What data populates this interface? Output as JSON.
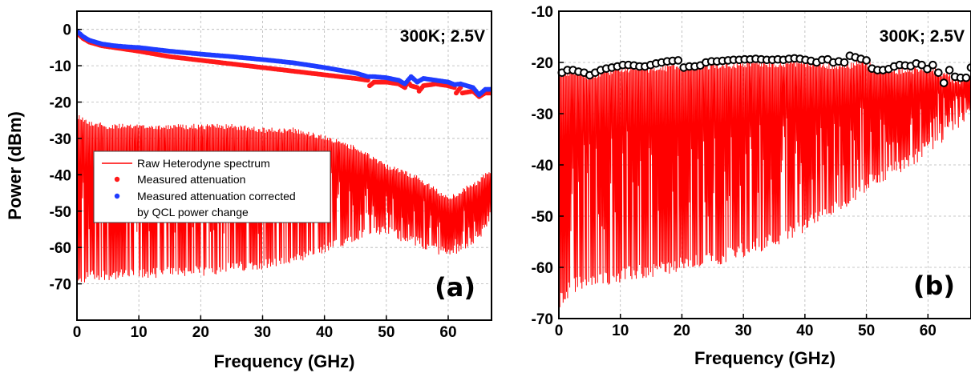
{
  "chart_data": [
    {
      "type": "line",
      "panel_label": "(a)",
      "condition_label": "300K; 2.5V",
      "xlabel": "Frequency  (GHz)",
      "ylabel": "Power (dBm)",
      "xlim": [
        0,
        67
      ],
      "ylim": [
        -80,
        5
      ],
      "x_ticks": [
        0,
        10,
        20,
        30,
        40,
        50,
        60
      ],
      "y_ticks": [
        0,
        -10,
        -20,
        -30,
        -40,
        -50,
        -60,
        -70
      ],
      "grid": true,
      "legend_position": "center-left",
      "colors": {
        "raw": "#ff0000",
        "attenuation": "#ff1a1a",
        "corrected": "#1f3cff"
      },
      "series": [
        {
          "name": "Raw Heterodyne spectrum",
          "kind": "comb-line",
          "envelope_x": [
            0,
            2,
            5,
            10,
            15,
            20,
            25,
            30,
            35,
            40,
            45,
            50,
            55,
            60,
            65,
            67
          ],
          "envelope_top": [
            -23,
            -25,
            -26,
            -26,
            -26,
            -26,
            -26,
            -27,
            -27,
            -29,
            -32,
            -37,
            -40,
            -46,
            -41,
            -38
          ],
          "envelope_bottom": [
            -71,
            -69,
            -69,
            -69,
            -68,
            -68,
            -67,
            -66,
            -65,
            -62,
            -58,
            -57,
            -60,
            -63,
            -58,
            -52
          ]
        },
        {
          "name": "Measured attenuation",
          "kind": "points",
          "x": [
            0,
            1,
            2,
            4,
            6,
            8,
            10,
            15,
            20,
            25,
            30,
            35,
            40,
            45,
            47,
            47.3,
            48,
            50,
            52,
            53,
            53.5,
            54,
            55,
            55.3,
            56,
            58,
            60,
            61,
            61.3,
            62,
            62.3,
            64,
            65,
            66,
            67
          ],
          "y": [
            -1,
            -2.5,
            -3.5,
            -4.5,
            -5,
            -5.5,
            -6,
            -7.5,
            -8.5,
            -9.5,
            -10.5,
            -11.5,
            -12.5,
            -13.5,
            -14,
            -15.5,
            -14.5,
            -14.5,
            -15,
            -16,
            -14.5,
            -15.5,
            -16,
            -17,
            -15.5,
            -15,
            -15.5,
            -16,
            -17.5,
            -16,
            -17.5,
            -17,
            -18.5,
            -17.5,
            -17.5
          ]
        },
        {
          "name": "Measured attenuation corrected by QCL power change",
          "kind": "points",
          "x": [
            0,
            1,
            2,
            4,
            6,
            8,
            10,
            15,
            20,
            25,
            30,
            35,
            40,
            45,
            47,
            48,
            50,
            52,
            53,
            54,
            55,
            56,
            58,
            60,
            61,
            62,
            64,
            65,
            66,
            67
          ],
          "y": [
            -0.5,
            -2,
            -3,
            -4,
            -4.5,
            -4.8,
            -5,
            -6,
            -6.8,
            -7.5,
            -8.3,
            -9.2,
            -10.5,
            -12,
            -13,
            -13,
            -13.3,
            -14,
            -15,
            -13,
            -14.5,
            -13.5,
            -14,
            -14.5,
            -15.2,
            -15,
            -16,
            -18,
            -16.5,
            -16.5
          ]
        }
      ]
    },
    {
      "type": "line",
      "panel_label": "(b)",
      "condition_label": "300K; 2.5V",
      "xlabel": "Frequency  (GHz)",
      "ylabel": "",
      "xlim": [
        0,
        67
      ],
      "ylim": [
        -70,
        -10
      ],
      "x_ticks": [
        0,
        10,
        20,
        30,
        40,
        50,
        60
      ],
      "y_ticks": [
        -10,
        -20,
        -30,
        -40,
        -50,
        -60,
        -70
      ],
      "grid": true,
      "colors": {
        "comb": "#ff0000",
        "peak_marker_fill": "#ffffff",
        "peak_marker_edge": "#000000"
      },
      "series": [
        {
          "kind": "comb-line",
          "envelope_x": [
            0,
            2,
            5,
            10,
            15,
            20,
            25,
            30,
            35,
            40,
            45,
            50,
            55,
            60,
            65,
            67
          ],
          "envelope_top": [
            -22,
            -21,
            -22,
            -20.5,
            -20.5,
            -20,
            -20,
            -19.5,
            -19.5,
            -19.5,
            -20,
            -19.5,
            -21,
            -20.5,
            -23,
            -21
          ],
          "envelope_bottom": [
            -68,
            -65,
            -64,
            -63,
            -62,
            -61,
            -60,
            -58,
            -56,
            -53,
            -50,
            -45,
            -42,
            -38,
            -33,
            -30
          ]
        },
        {
          "kind": "markers",
          "x": [
            0.5,
            1.4,
            2.3,
            3.2,
            4.1,
            5.0,
            5.9,
            6.8,
            7.7,
            8.6,
            9.5,
            10.4,
            11.3,
            12.2,
            13.1,
            14.0,
            14.9,
            15.8,
            16.7,
            17.6,
            18.5,
            19.4,
            20.3,
            21.2,
            22.1,
            23.0,
            23.9,
            24.8,
            25.7,
            26.6,
            27.5,
            28.4,
            29.3,
            30.2,
            31.1,
            32.0,
            32.9,
            33.8,
            34.7,
            35.6,
            36.5,
            37.4,
            38.3,
            39.2,
            40.1,
            41.0,
            41.9,
            42.8,
            43.7,
            44.6,
            45.5,
            46.4,
            47.3,
            48.2,
            49.1,
            50.0,
            50.9,
            51.8,
            52.7,
            53.6,
            54.5,
            55.4,
            56.3,
            57.2,
            58.1,
            59.0,
            59.9,
            60.8,
            61.7,
            62.6,
            63.5,
            64.4,
            65.3,
            66.2,
            67.0
          ],
          "y": [
            -22,
            -21.5,
            -21.5,
            -21.8,
            -22,
            -22.5,
            -22,
            -21.5,
            -21.2,
            -21,
            -20.8,
            -20.5,
            -20.5,
            -20.6,
            -20.8,
            -20.8,
            -20.5,
            -20.2,
            -20,
            -19.8,
            -19.7,
            -19.6,
            -21,
            -20.8,
            -20.8,
            -20.6,
            -20,
            -19.8,
            -19.8,
            -19.7,
            -19.6,
            -19.5,
            -19.5,
            -19.4,
            -19.4,
            -19.3,
            -19.4,
            -19.5,
            -19.5,
            -19.4,
            -19.5,
            -19.3,
            -19.2,
            -19.3,
            -19.5,
            -19.7,
            -20,
            -19.5,
            -19.4,
            -20,
            -19.8,
            -20,
            -18.7,
            -19,
            -19.3,
            -19.6,
            -21.2,
            -21.5,
            -21.5,
            -21.3,
            -20.8,
            -20.5,
            -20.6,
            -20.7,
            -20.2,
            -20.5,
            -21.3,
            -20.5,
            -22,
            -24,
            -21.5,
            -22.8,
            -23,
            -23,
            -21
          ]
        }
      ]
    }
  ],
  "legend": {
    "raw_label": "Raw Heterodyne spectrum",
    "attenuation_label": "Measured attenuation",
    "corrected_line1": "Measured attenuation corrected",
    "corrected_line2": "by QCL power change"
  }
}
